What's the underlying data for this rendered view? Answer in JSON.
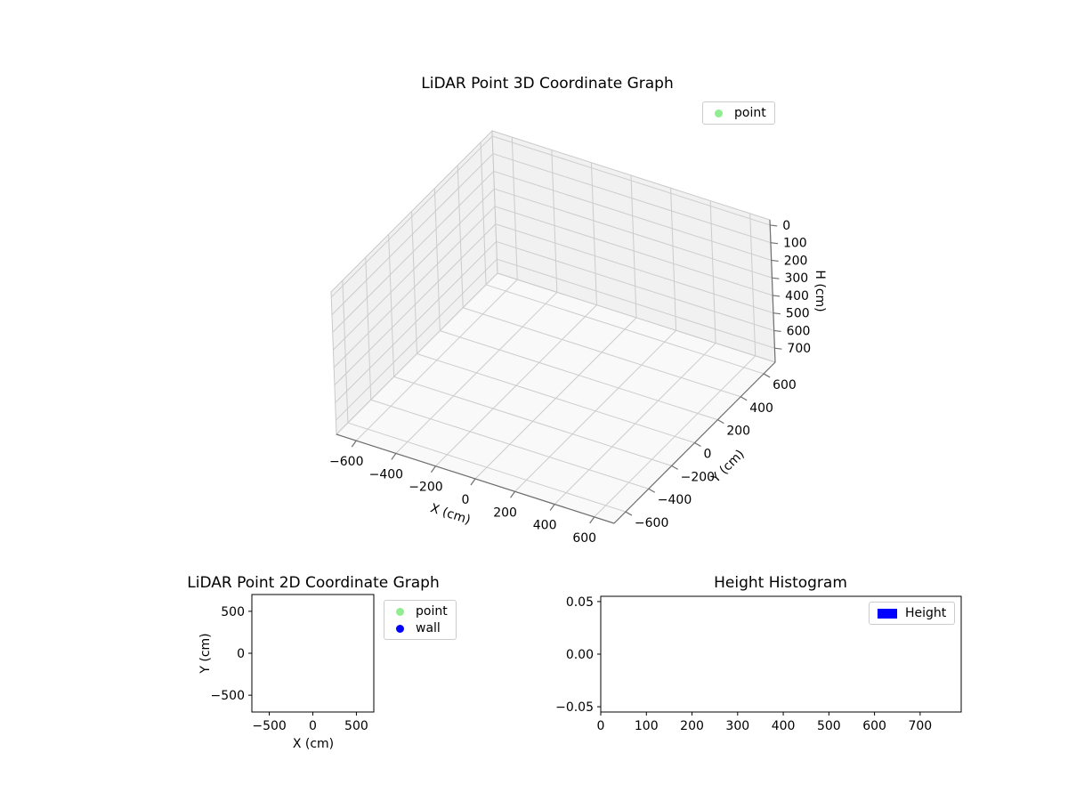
{
  "figure": {
    "background": "#ffffff"
  },
  "colors": {
    "point": "#90ee90",
    "wall": "#0000ff",
    "height_bar": "#0000ff"
  },
  "chart_data": [
    {
      "id": "plot3d",
      "type": "scatter",
      "projection": "3d",
      "title": "LiDAR Point 3D Coordinate Graph",
      "xlabel": "X (cm)",
      "ylabel": "Y (cm)",
      "zlabel": "H (cm)",
      "xlim": [
        -700,
        700
      ],
      "ylim": [
        -700,
        700
      ],
      "zlim": [
        -30,
        780
      ],
      "zaxis_inverted": true,
      "xticks": [
        -600,
        -400,
        -200,
        0,
        200,
        400,
        600
      ],
      "yticks": [
        -600,
        -400,
        -200,
        0,
        200,
        400,
        600
      ],
      "zticks": [
        0,
        100,
        200,
        300,
        400,
        500,
        600,
        700
      ],
      "grid": true,
      "legend_position": "upper right, outside axes",
      "legend": [
        {
          "label": "point",
          "marker": "circle",
          "color": "#90ee90"
        }
      ],
      "series": [
        {
          "name": "point",
          "points": []
        }
      ]
    },
    {
      "id": "plot2d",
      "type": "scatter",
      "title": "LiDAR Point 2D Coordinate Graph",
      "xlabel": "X (cm)",
      "ylabel": "Y (cm)",
      "xlim": [
        -700,
        700
      ],
      "ylim": [
        -700,
        700
      ],
      "xticks": [
        -500,
        0,
        500
      ],
      "yticks": [
        500,
        0,
        -500
      ],
      "grid": false,
      "legend_position": "outside right of axes",
      "legend": [
        {
          "label": "point",
          "marker": "circle",
          "color": "#90ee90"
        },
        {
          "label": "wall",
          "marker": "circle",
          "color": "#0000ff"
        }
      ],
      "series": [
        {
          "name": "point",
          "points": []
        },
        {
          "name": "wall",
          "points": []
        }
      ]
    },
    {
      "id": "hist",
      "type": "bar",
      "title": "Height Histogram",
      "xlabel": "",
      "ylabel": "",
      "xlim": [
        0,
        790
      ],
      "ylim": [
        -0.055,
        0.055
      ],
      "xticks": [
        0,
        100,
        200,
        300,
        400,
        500,
        600,
        700
      ],
      "yticks": [
        0.05,
        0,
        -0.05
      ],
      "ytick_labels": [
        "0.05",
        "0.00",
        "−0.05"
      ],
      "grid": false,
      "legend_position": "upper right, inside axes",
      "legend": [
        {
          "label": "Height",
          "marker": "rect",
          "color": "#0000ff"
        }
      ],
      "values": []
    }
  ]
}
